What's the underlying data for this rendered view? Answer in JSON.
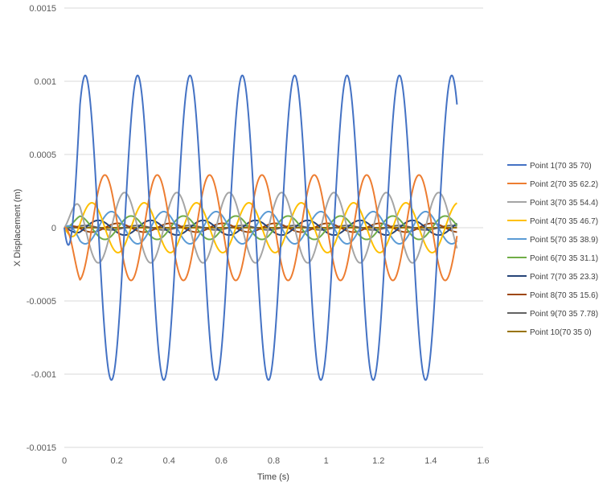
{
  "chart_data": {
    "type": "line",
    "title": "",
    "xlabel": "Time (s)",
    "ylabel": "X Displacement (m)",
    "xlim": [
      0,
      1.6
    ],
    "ylim": [
      -0.0015,
      0.0015
    ],
    "x_ticks": [
      "0",
      "0.2",
      "0.4",
      "0.6",
      "0.8",
      "1",
      "1.2",
      "1.4",
      "1.6"
    ],
    "y_ticks": [
      "-0.0015",
      "-0.001",
      "-0.0005",
      "0",
      "0.0005",
      "0.001",
      "0.0015"
    ],
    "grid": "horizontal",
    "legend_position": "right",
    "series": [
      {
        "name": "Point 1(70 35 70)",
        "color": "#4472C4",
        "amplitude": 0.00104,
        "period": 0.2,
        "t_start": 0.0,
        "peak_time": 0.08
      },
      {
        "name": "Point 2(70 35 62.2)",
        "color": "#ED7D31",
        "amplitude": 0.00036,
        "period": 0.2,
        "t_start": 0.0,
        "peak_time": 0.155
      },
      {
        "name": "Point 3(70 35 54.4)",
        "color": "#A5A5A5",
        "amplitude": 0.00024,
        "period": 0.2,
        "t_start": 0.0,
        "peak_time": 0.23
      },
      {
        "name": "Point 4(70 35 46.7)",
        "color": "#FFC000",
        "amplitude": 0.00017,
        "period": 0.2,
        "t_start": 0.0,
        "peak_time": 0.305
      },
      {
        "name": "Point 5(70 35 38.9)",
        "color": "#5B9BD5",
        "amplitude": 0.00011,
        "period": 0.2,
        "t_start": 0.0,
        "peak_time": 0.38
      },
      {
        "name": "Point 6(70 35 31.1)",
        "color": "#70AD47",
        "amplitude": 8e-05,
        "period": 0.2,
        "t_start": 0.0,
        "peak_time": 0.455
      },
      {
        "name": "Point 7(70 35 23.3)",
        "color": "#264478",
        "amplitude": 5e-05,
        "period": 0.2,
        "t_start": 0.0,
        "peak_time": 0.53
      },
      {
        "name": "Point 8(70 35 15.6)",
        "color": "#9E480E",
        "amplitude": 3e-05,
        "period": 0.2,
        "t_start": 0.0,
        "peak_time": 0.605
      },
      {
        "name": "Point 9(70 35 7.78)",
        "color": "#636363",
        "amplitude": 1.5e-05,
        "period": 0.2,
        "t_start": 0.0,
        "peak_time": 0.68
      },
      {
        "name": "Point 10(70 35 0)",
        "color": "#997300",
        "amplitude": 0.0,
        "period": 0.2,
        "t_start": 0.0,
        "peak_time": 0.75
      }
    ],
    "x_max_data": 1.5
  }
}
